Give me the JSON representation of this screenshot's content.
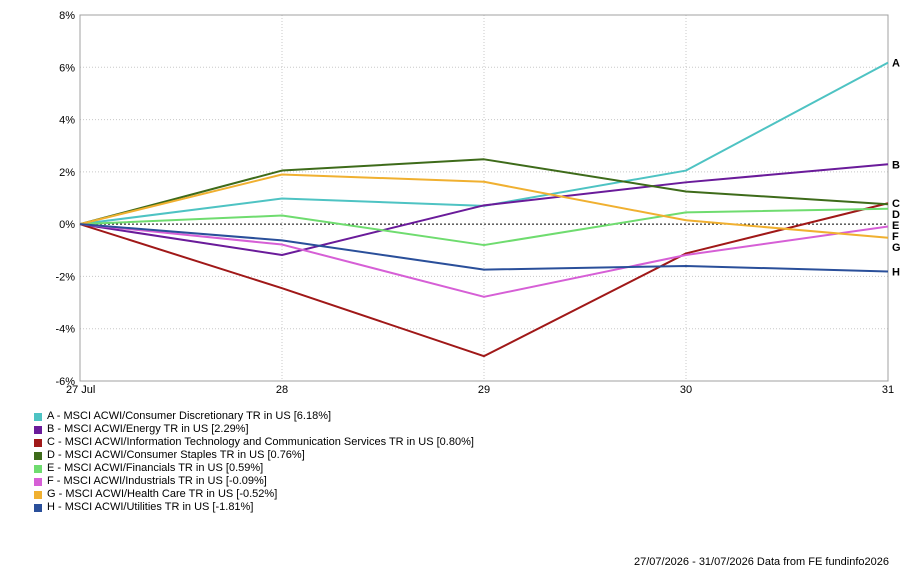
{
  "chart_data": {
    "type": "line",
    "title": "",
    "xlabel": "",
    "ylabel": "",
    "categories": [
      "27 Jul",
      "28",
      "29",
      "30",
      "31"
    ],
    "ylim": [
      -6,
      8
    ],
    "yticks": [
      "8%",
      "6%",
      "4%",
      "2%",
      "0%",
      "-2%",
      "-4%",
      "-6%"
    ],
    "ytick_values": [
      8,
      6,
      4,
      2,
      0,
      -2,
      -4,
      -6
    ],
    "grid": true,
    "series": [
      {
        "key": "A",
        "name": "A - MSCI ACWI/Consumer Discretionary TR in US [6.18%]",
        "color": "#4ec3c3",
        "values": [
          0,
          0.98,
          0.7,
          2.05,
          6.18
        ]
      },
      {
        "key": "B",
        "name": "B - MSCI ACWI/Energy TR in US [2.29%]",
        "color": "#6a1b9a",
        "values": [
          0,
          -1.18,
          0.72,
          1.6,
          2.29
        ]
      },
      {
        "key": "C",
        "name": "C - MSCI ACWI/Information Technology and Communication Services TR in US [0.80%]",
        "color": "#a01818",
        "values": [
          0,
          -2.45,
          -5.05,
          -1.12,
          0.8
        ]
      },
      {
        "key": "D",
        "name": "D - MSCI ACWI/Consumer Staples TR in US [0.76%]",
        "color": "#3e6b1a",
        "values": [
          0,
          2.05,
          2.48,
          1.25,
          0.76
        ]
      },
      {
        "key": "E",
        "name": "E - MSCI ACWI/Financials TR in US [0.59%]",
        "color": "#6fdc6f",
        "values": [
          0,
          0.33,
          -0.8,
          0.45,
          0.59
        ]
      },
      {
        "key": "F",
        "name": "F - MSCI ACWI/Industrials TR in US [-0.09%]",
        "color": "#d65fd6",
        "values": [
          0,
          -0.78,
          -2.78,
          -1.18,
          -0.09
        ]
      },
      {
        "key": "G",
        "name": "G - MSCI ACWI/Health Care TR in US [-0.52%]",
        "color": "#f0b030",
        "values": [
          0,
          1.9,
          1.62,
          0.15,
          -0.52
        ]
      },
      {
        "key": "H",
        "name": "H - MSCI ACWI/Utilities TR in US [-1.81%]",
        "color": "#2a4f9a",
        "values": [
          0,
          -0.62,
          -1.74,
          -1.6,
          -1.81
        ]
      }
    ]
  },
  "footer": "27/07/2026 - 31/07/2026 Data from FE fundinfo2026"
}
